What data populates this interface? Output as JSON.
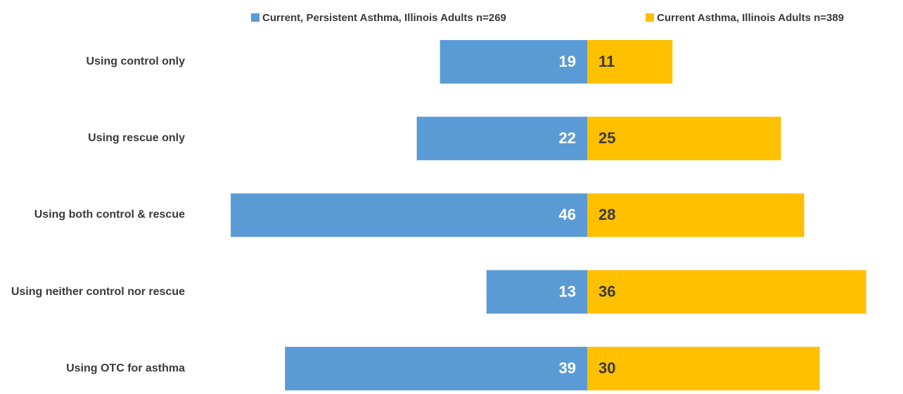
{
  "chart_data": {
    "type": "butterfly-bar",
    "categories": [
      "Using control only",
      "Using rescue only",
      "Using both control & rescue",
      "Using neither control nor rescue",
      "Using OTC for asthma"
    ],
    "series": [
      {
        "name": "Current, Persistent Asthma, Illinois Adults n=269",
        "color": "#5b9bd5",
        "values": [
          19,
          22,
          46,
          13,
          39
        ]
      },
      {
        "name": "Current Asthma, Illinois Adults n=389",
        "color": "#ffc000",
        "values": [
          11,
          25,
          28,
          36,
          30
        ]
      }
    ]
  }
}
